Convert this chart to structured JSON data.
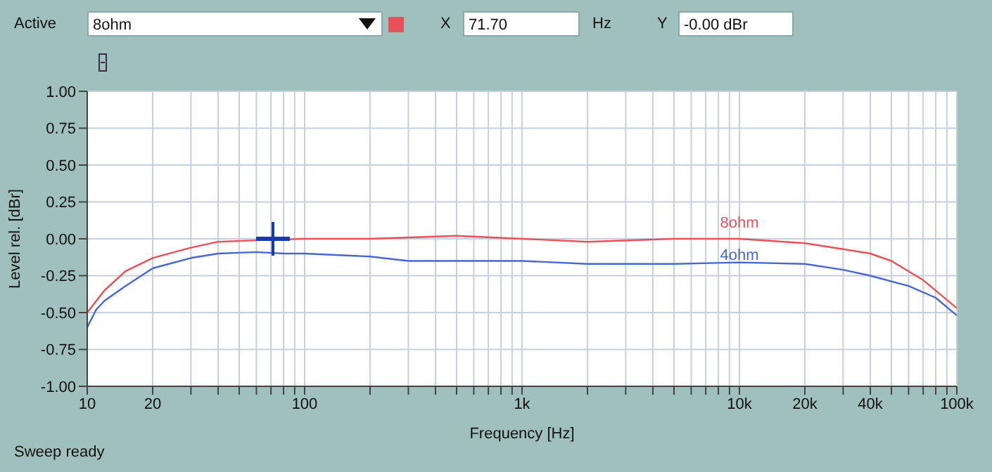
{
  "chart_data": {
    "type": "line",
    "xlabel": "Frequency [Hz]",
    "ylabel": "Level rel. [dBr]",
    "log": "x",
    "grid": true,
    "marker": "none",
    "line_style": "solid",
    "legend": false,
    "xlim": [
      10,
      100000
    ],
    "xticks": [
      10,
      20,
      {
        "value": 30,
        "label": null
      },
      {
        "value": 40,
        "label": null
      },
      {
        "value": 50,
        "label": null
      },
      {
        "value": 60,
        "label": null
      },
      {
        "value": 70,
        "label": null
      },
      {
        "value": 80,
        "label": null
      },
      {
        "value": 90,
        "label": null
      },
      100,
      {
        "value": 200,
        "label": null
      },
      {
        "value": 300,
        "label": null
      },
      {
        "value": 400,
        "label": null
      },
      {
        "value": 500,
        "label": null
      },
      {
        "value": 600,
        "label": null
      },
      {
        "value": 700,
        "label": null
      },
      {
        "value": 800,
        "label": null
      },
      {
        "value": 900,
        "label": null
      },
      {
        "value": 1000,
        "label": "1k"
      },
      {
        "value": 2000,
        "label": null
      },
      {
        "value": 3000,
        "label": null
      },
      {
        "value": 4000,
        "label": null
      },
      {
        "value": 5000,
        "label": null
      },
      {
        "value": 6000,
        "label": null
      },
      {
        "value": 7000,
        "label": null
      },
      {
        "value": 8000,
        "label": null
      },
      {
        "value": 9000,
        "label": null
      },
      {
        "value": 10000,
        "label": "10k"
      },
      {
        "value": 20000,
        "label": "20k"
      },
      {
        "value": 30000,
        "label": null
      },
      {
        "value": 40000,
        "label": "40k"
      },
      {
        "value": 50000,
        "label": null
      },
      {
        "value": 60000,
        "label": null
      },
      {
        "value": 70000,
        "label": null
      },
      {
        "value": 80000,
        "label": null
      },
      {
        "value": 90000,
        "label": null
      },
      {
        "value": 100000,
        "label": "100k"
      }
    ],
    "ylim": [
      -1,
      1
    ],
    "yticks": [
      {
        "value": 1,
        "label": "1.00"
      },
      {
        "value": 0.75,
        "label": "0.75"
      },
      {
        "value": 0.5,
        "label": "0.50"
      },
      {
        "value": 0.25,
        "label": "0.25"
      },
      {
        "value": 0,
        "label": "0.00"
      },
      {
        "value": -0.25,
        "label": "-0.25"
      },
      {
        "value": -0.5,
        "label": "-0.50"
      },
      {
        "value": -0.75,
        "label": "-0.75"
      },
      {
        "value": -1,
        "label": "-1.00"
      }
    ],
    "series": [
      {
        "name": "8ohm",
        "color": "#e8505a",
        "x": [
          10,
          12,
          15,
          20,
          30,
          40,
          60,
          100,
          200,
          500,
          1000,
          2000,
          5000,
          10000,
          20000,
          30000,
          40000,
          50000,
          70000,
          100000
        ],
        "values": [
          -0.5,
          -0.35,
          -0.22,
          -0.13,
          -0.06,
          -0.02,
          -0.01,
          0,
          0,
          0.02,
          0,
          -0.02,
          0,
          0,
          -0.03,
          -0.07,
          -0.1,
          -0.15,
          -0.28,
          -0.47
        ]
      },
      {
        "name": "4ohm",
        "color": "#4a66d0",
        "x": [
          10,
          11,
          12,
          15,
          20,
          30,
          40,
          60,
          80,
          100,
          200,
          300,
          1000,
          2000,
          5000,
          10000,
          20000,
          30000,
          40000,
          60000,
          80000,
          100000
        ],
        "values": [
          -0.6,
          -0.48,
          -0.42,
          -0.32,
          -0.2,
          -0.13,
          -0.1,
          -0.09,
          -0.1,
          -0.1,
          -0.12,
          -0.15,
          -0.15,
          -0.17,
          -0.17,
          -0.16,
          -0.17,
          -0.21,
          -0.25,
          -0.32,
          -0.4,
          -0.52
        ]
      }
    ],
    "annotations": [
      "Active",
      "8ohm",
      "X",
      "71.70",
      "Hz",
      "Y",
      "-0.00 dBr",
      "Sweep ready"
    ]
  }
}
